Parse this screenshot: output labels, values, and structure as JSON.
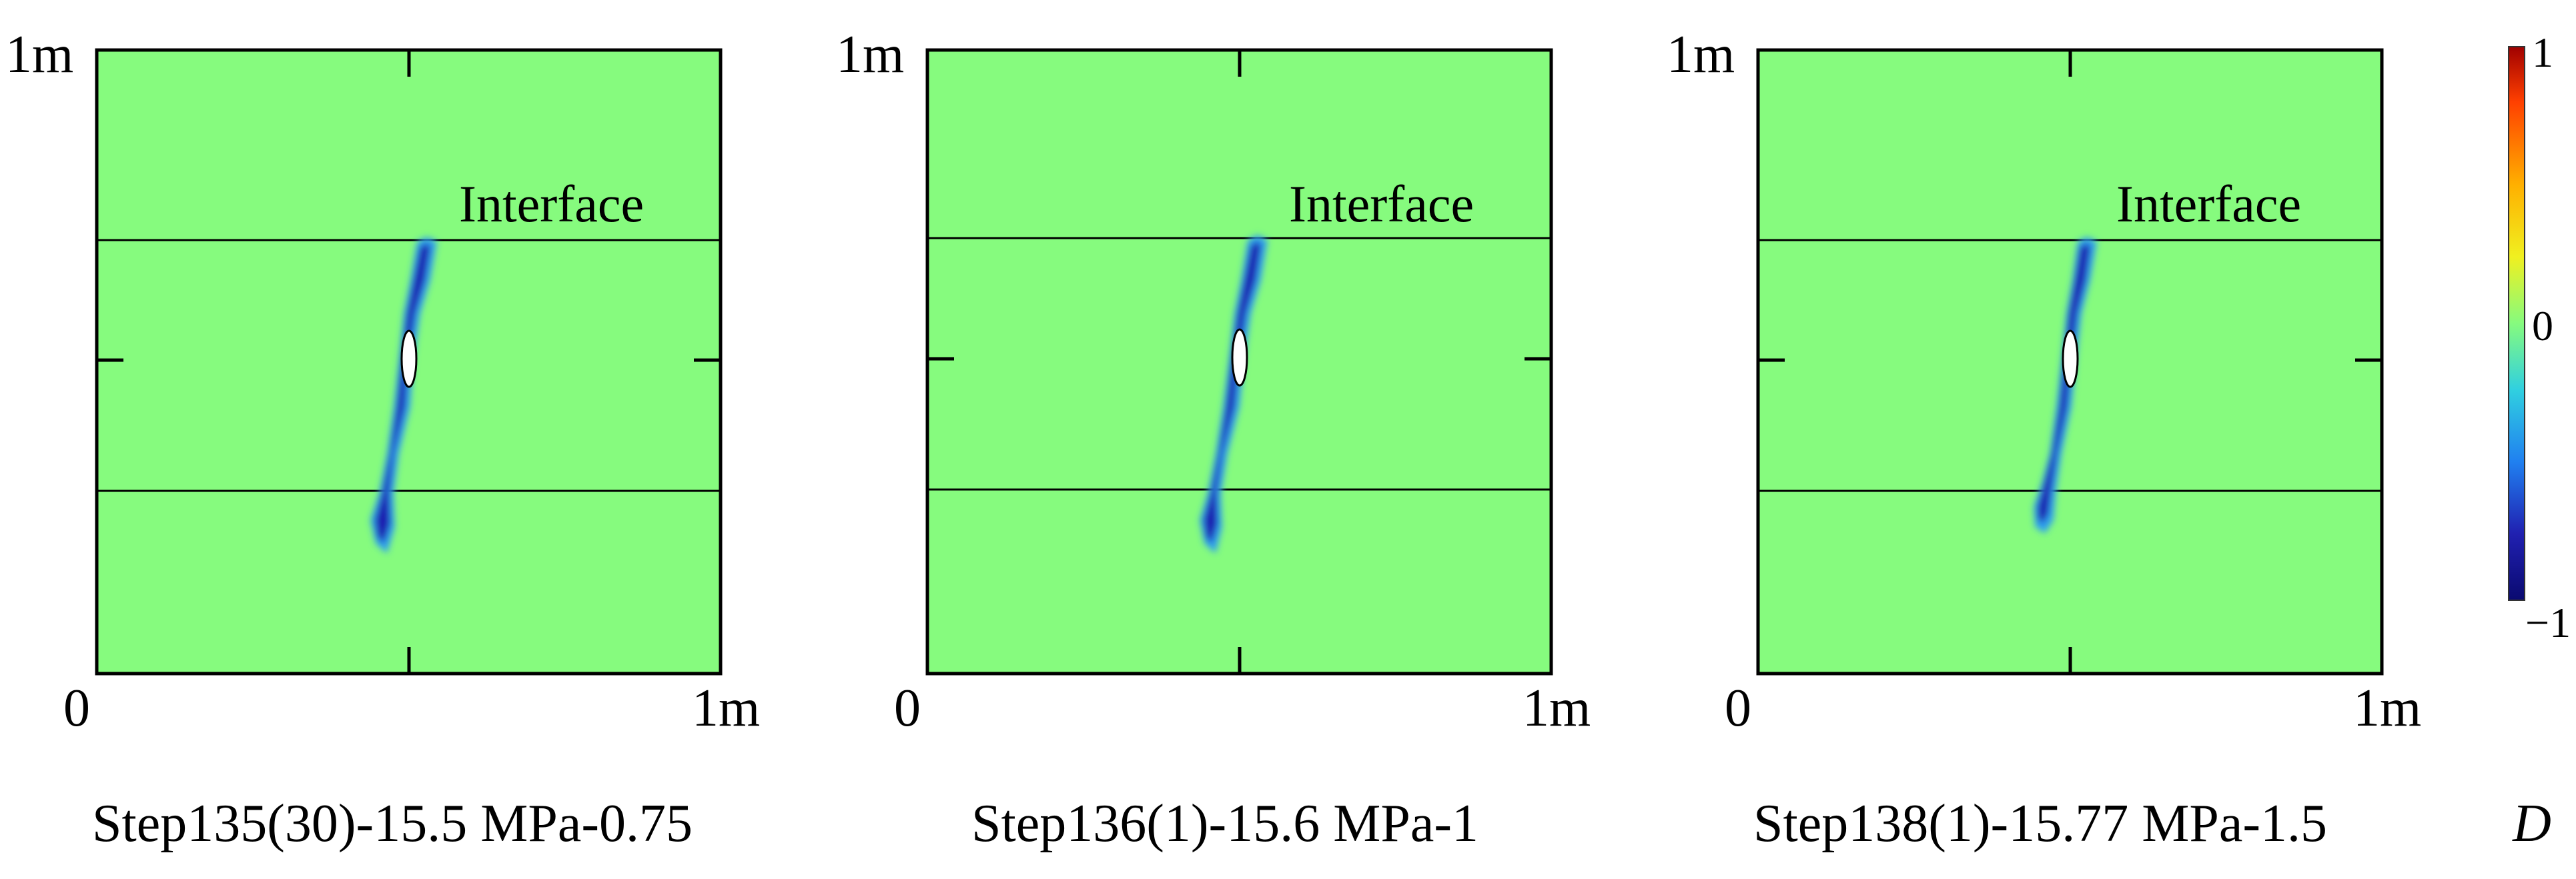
{
  "colors": {
    "background_field": "#86fb7e",
    "damage_dark": "#1b1fb0",
    "damage_edge": "#2fa0f0",
    "interface_line": "#000000"
  },
  "panels": [
    {
      "caption": "Step135(30)-15.5 MPa-0.75",
      "axis_y_top": "1m",
      "axis_x_origin": "0",
      "axis_x_end": "1m",
      "interface_label": "Interface"
    },
    {
      "caption": "Step136(1)-15.6 MPa-1",
      "axis_y_top": "1m",
      "axis_x_origin": "0",
      "axis_x_end": "1m",
      "interface_label": "Interface"
    },
    {
      "caption": "Step138(1)-15.77 MPa-1.5",
      "axis_y_top": "1m",
      "axis_x_origin": "0",
      "axis_x_end": "1m",
      "interface_label": "Interface"
    }
  ],
  "colorbar": {
    "max_label": "1",
    "mid_label": "0",
    "min_label": "−1",
    "variable_label": "D",
    "stops": [
      "#a00000",
      "#ff4000",
      "#ffb000",
      "#f0f020",
      "#86fb7e",
      "#30d0e0",
      "#2080f0",
      "#2020b0",
      "#0a0a70"
    ]
  }
}
